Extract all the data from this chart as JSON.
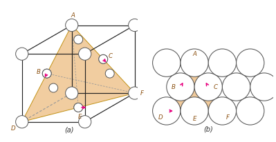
{
  "fig_width": 3.99,
  "fig_height": 2.06,
  "dpi": 100,
  "bg_color": "#ffffff",
  "tan_color": "#f0c896",
  "arrow_color": "#e8007f",
  "cube_edge_color": "#222222",
  "dashed_color": "#999999",
  "circle_edge_color": "#555555",
  "circle_fill": "#ffffff",
  "caption_a": "(a)",
  "caption_b": "(b)",
  "label_color": "#8B5010"
}
